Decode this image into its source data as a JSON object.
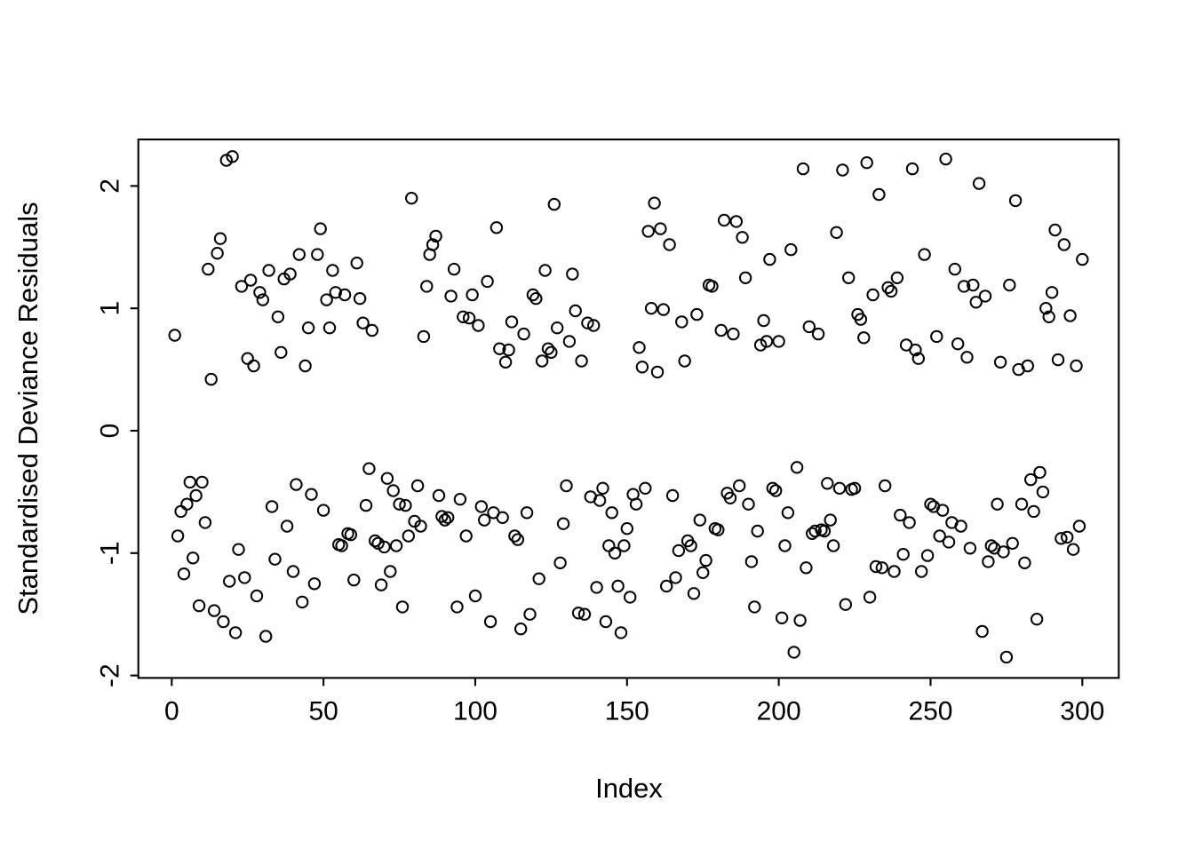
{
  "figure": {
    "background_color": "#ffffff",
    "stroke_color": "#000000"
  },
  "chart_data": {
    "type": "scatter",
    "title": "",
    "xlabel": "Index",
    "ylabel": "Standardised Deviance Residuals",
    "marker": "open-circle",
    "legend": "none",
    "grid": false,
    "xlim": [
      -11,
      312
    ],
    "ylim": [
      -2.02,
      2.38
    ],
    "x_ticks": [
      0,
      50,
      100,
      150,
      200,
      250,
      300
    ],
    "y_ticks": [
      -2,
      -1,
      0,
      1,
      2
    ],
    "points": [
      [
        1,
        0.78
      ],
      [
        2,
        -0.86
      ],
      [
        3,
        -0.66
      ],
      [
        4,
        -1.17
      ],
      [
        5,
        -0.6
      ],
      [
        6,
        -0.42
      ],
      [
        7,
        -1.04
      ],
      [
        8,
        -0.53
      ],
      [
        9,
        -1.43
      ],
      [
        10,
        -0.42
      ],
      [
        11,
        -0.75
      ],
      [
        12,
        1.32
      ],
      [
        13,
        0.42
      ],
      [
        14,
        -1.47
      ],
      [
        15,
        1.45
      ],
      [
        16,
        1.57
      ],
      [
        17,
        -1.56
      ],
      [
        18,
        2.21
      ],
      [
        19,
        -1.23
      ],
      [
        20,
        2.24
      ],
      [
        21,
        -1.65
      ],
      [
        22,
        -0.97
      ],
      [
        23,
        1.18
      ],
      [
        24,
        -1.2
      ],
      [
        25,
        0.59
      ],
      [
        26,
        1.23
      ],
      [
        27,
        0.53
      ],
      [
        28,
        -1.35
      ],
      [
        29,
        1.13
      ],
      [
        30,
        1.07
      ],
      [
        31,
        -1.68
      ],
      [
        32,
        1.31
      ],
      [
        33,
        -0.62
      ],
      [
        34,
        -1.05
      ],
      [
        35,
        0.93
      ],
      [
        36,
        0.64
      ],
      [
        37,
        1.24
      ],
      [
        38,
        -0.78
      ],
      [
        39,
        1.28
      ],
      [
        40,
        -1.15
      ],
      [
        41,
        -0.44
      ],
      [
        42,
        1.44
      ],
      [
        43,
        -1.4
      ],
      [
        44,
        0.53
      ],
      [
        45,
        0.84
      ],
      [
        46,
        -0.52
      ],
      [
        47,
        -1.25
      ],
      [
        48,
        1.44
      ],
      [
        49,
        1.65
      ],
      [
        50,
        -0.65
      ],
      [
        51,
        1.07
      ],
      [
        52,
        0.84
      ],
      [
        53,
        1.31
      ],
      [
        54,
        1.13
      ],
      [
        55,
        -0.93
      ],
      [
        56,
        -0.94
      ],
      [
        57,
        1.11
      ],
      [
        58,
        -0.84
      ],
      [
        59,
        -0.85
      ],
      [
        60,
        -1.22
      ],
      [
        61,
        1.37
      ],
      [
        62,
        1.08
      ],
      [
        63,
        0.88
      ],
      [
        64,
        -0.61
      ],
      [
        65,
        -0.31
      ],
      [
        66,
        0.82
      ],
      [
        67,
        -0.9
      ],
      [
        68,
        -0.92
      ],
      [
        69,
        -1.26
      ],
      [
        70,
        -0.95
      ],
      [
        71,
        -0.39
      ],
      [
        72,
        -1.15
      ],
      [
        73,
        -0.49
      ],
      [
        74,
        -0.94
      ],
      [
        75,
        -0.6
      ],
      [
        76,
        -1.44
      ],
      [
        77,
        -0.61
      ],
      [
        78,
        -0.86
      ],
      [
        79,
        1.9
      ],
      [
        80,
        -0.74
      ],
      [
        81,
        -0.45
      ],
      [
        82,
        -0.78
      ],
      [
        83,
        0.77
      ],
      [
        84,
        1.18
      ],
      [
        85,
        1.44
      ],
      [
        86,
        1.52
      ],
      [
        87,
        1.59
      ],
      [
        88,
        -0.53
      ],
      [
        89,
        -0.7
      ],
      [
        90,
        -0.73
      ],
      [
        91,
        -0.71
      ],
      [
        92,
        1.1
      ],
      [
        93,
        1.32
      ],
      [
        94,
        -1.44
      ],
      [
        95,
        -0.56
      ],
      [
        96,
        0.93
      ],
      [
        97,
        -0.86
      ],
      [
        98,
        0.92
      ],
      [
        99,
        1.11
      ],
      [
        100,
        -1.35
      ],
      [
        101,
        0.86
      ],
      [
        102,
        -0.62
      ],
      [
        103,
        -0.73
      ],
      [
        104,
        1.22
      ],
      [
        105,
        -1.56
      ],
      [
        106,
        -0.67
      ],
      [
        107,
        1.66
      ],
      [
        108,
        0.67
      ],
      [
        109,
        -0.71
      ],
      [
        110,
        0.56
      ],
      [
        111,
        0.66
      ],
      [
        112,
        0.89
      ],
      [
        113,
        -0.86
      ],
      [
        114,
        -0.89
      ],
      [
        115,
        -1.62
      ],
      [
        116,
        0.79
      ],
      [
        117,
        -0.67
      ],
      [
        118,
        -1.5
      ],
      [
        119,
        1.11
      ],
      [
        120,
        1.08
      ],
      [
        121,
        -1.21
      ],
      [
        122,
        0.57
      ],
      [
        123,
        1.31
      ],
      [
        124,
        0.67
      ],
      [
        125,
        0.64
      ],
      [
        126,
        1.85
      ],
      [
        127,
        0.84
      ],
      [
        128,
        -1.08
      ],
      [
        129,
        -0.76
      ],
      [
        130,
        -0.45
      ],
      [
        131,
        0.73
      ],
      [
        132,
        1.28
      ],
      [
        133,
        0.98
      ],
      [
        134,
        -1.49
      ],
      [
        135,
        0.57
      ],
      [
        136,
        -1.5
      ],
      [
        137,
        0.88
      ],
      [
        138,
        -0.54
      ],
      [
        139,
        0.86
      ],
      [
        140,
        -1.28
      ],
      [
        141,
        -0.57
      ],
      [
        142,
        -0.47
      ],
      [
        143,
        -1.56
      ],
      [
        144,
        -0.94
      ],
      [
        145,
        -0.67
      ],
      [
        146,
        -1.0
      ],
      [
        147,
        -1.27
      ],
      [
        148,
        -1.65
      ],
      [
        149,
        -0.94
      ],
      [
        150,
        -0.8
      ],
      [
        151,
        -1.36
      ],
      [
        152,
        -0.52
      ],
      [
        153,
        -0.6
      ],
      [
        154,
        0.68
      ],
      [
        155,
        0.52
      ],
      [
        156,
        -0.47
      ],
      [
        157,
        1.63
      ],
      [
        158,
        1.0
      ],
      [
        159,
        1.86
      ],
      [
        160,
        0.48
      ],
      [
        161,
        1.65
      ],
      [
        162,
        0.99
      ],
      [
        163,
        -1.27
      ],
      [
        164,
        1.52
      ],
      [
        165,
        -0.53
      ],
      [
        166,
        -1.2
      ],
      [
        167,
        -0.98
      ],
      [
        168,
        0.89
      ],
      [
        169,
        0.57
      ],
      [
        170,
        -0.9
      ],
      [
        171,
        -0.94
      ],
      [
        172,
        -1.33
      ],
      [
        173,
        0.95
      ],
      [
        174,
        -0.73
      ],
      [
        175,
        -1.16
      ],
      [
        176,
        -1.06
      ],
      [
        177,
        1.19
      ],
      [
        178,
        1.18
      ],
      [
        179,
        -0.8
      ],
      [
        180,
        -0.81
      ],
      [
        181,
        0.82
      ],
      [
        182,
        1.72
      ],
      [
        183,
        -0.51
      ],
      [
        184,
        -0.55
      ],
      [
        185,
        0.79
      ],
      [
        186,
        1.71
      ],
      [
        187,
        -0.45
      ],
      [
        188,
        1.58
      ],
      [
        189,
        1.25
      ],
      [
        190,
        -0.6
      ],
      [
        191,
        -1.07
      ],
      [
        192,
        -1.44
      ],
      [
        193,
        -0.82
      ],
      [
        194,
        0.7
      ],
      [
        195,
        0.9
      ],
      [
        196,
        0.73
      ],
      [
        197,
        1.4
      ],
      [
        198,
        -0.47
      ],
      [
        199,
        -0.49
      ],
      [
        200,
        0.73
      ],
      [
        201,
        -1.53
      ],
      [
        202,
        -0.94
      ],
      [
        203,
        -0.67
      ],
      [
        204,
        1.48
      ],
      [
        205,
        -1.81
      ],
      [
        206,
        -0.3
      ],
      [
        207,
        -1.55
      ],
      [
        208,
        2.14
      ],
      [
        209,
        -1.12
      ],
      [
        210,
        0.85
      ],
      [
        211,
        -0.84
      ],
      [
        212,
        -0.82
      ],
      [
        213,
        0.79
      ],
      [
        214,
        -0.81
      ],
      [
        215,
        -0.82
      ],
      [
        216,
        -0.43
      ],
      [
        217,
        -0.73
      ],
      [
        218,
        -0.94
      ],
      [
        219,
        1.62
      ],
      [
        220,
        -0.47
      ],
      [
        221,
        2.13
      ],
      [
        222,
        -1.42
      ],
      [
        223,
        1.25
      ],
      [
        224,
        -0.48
      ],
      [
        225,
        -0.47
      ],
      [
        226,
        0.95
      ],
      [
        227,
        0.91
      ],
      [
        228,
        0.76
      ],
      [
        229,
        2.19
      ],
      [
        230,
        -1.36
      ],
      [
        231,
        1.11
      ],
      [
        232,
        -1.11
      ],
      [
        233,
        1.93
      ],
      [
        234,
        -1.12
      ],
      [
        235,
        -0.45
      ],
      [
        236,
        1.17
      ],
      [
        237,
        1.14
      ],
      [
        238,
        -1.15
      ],
      [
        239,
        1.25
      ],
      [
        240,
        -0.69
      ],
      [
        241,
        -1.01
      ],
      [
        242,
        0.7
      ],
      [
        243,
        -0.75
      ],
      [
        244,
        2.14
      ],
      [
        245,
        0.66
      ],
      [
        246,
        0.59
      ],
      [
        247,
        -1.15
      ],
      [
        248,
        1.44
      ],
      [
        249,
        -1.02
      ],
      [
        250,
        -0.6
      ],
      [
        251,
        -0.62
      ],
      [
        252,
        0.77
      ],
      [
        253,
        -0.86
      ],
      [
        254,
        -0.65
      ],
      [
        255,
        2.22
      ],
      [
        256,
        -0.91
      ],
      [
        257,
        -0.75
      ],
      [
        258,
        1.32
      ],
      [
        259,
        0.71
      ],
      [
        260,
        -0.78
      ],
      [
        261,
        1.18
      ],
      [
        262,
        0.6
      ],
      [
        263,
        -0.96
      ],
      [
        264,
        1.19
      ],
      [
        265,
        1.05
      ],
      [
        266,
        2.02
      ],
      [
        267,
        -1.64
      ],
      [
        268,
        1.1
      ],
      [
        269,
        -1.07
      ],
      [
        270,
        -0.94
      ],
      [
        271,
        -0.96
      ],
      [
        272,
        -0.6
      ],
      [
        273,
        0.56
      ],
      [
        274,
        -0.99
      ],
      [
        275,
        -1.85
      ],
      [
        276,
        1.19
      ],
      [
        277,
        -0.92
      ],
      [
        278,
        1.88
      ],
      [
        279,
        0.5
      ],
      [
        280,
        -0.6
      ],
      [
        281,
        -1.08
      ],
      [
        282,
        0.53
      ],
      [
        283,
        -0.4
      ],
      [
        284,
        -0.66
      ],
      [
        285,
        -1.54
      ],
      [
        286,
        -0.34
      ],
      [
        287,
        -0.5
      ],
      [
        288,
        1.0
      ],
      [
        289,
        0.93
      ],
      [
        290,
        1.13
      ],
      [
        291,
        1.64
      ],
      [
        292,
        0.58
      ],
      [
        293,
        -0.88
      ],
      [
        294,
        1.52
      ],
      [
        295,
        -0.87
      ],
      [
        296,
        0.94
      ],
      [
        297,
        -0.97
      ],
      [
        298,
        0.53
      ],
      [
        299,
        -0.78
      ],
      [
        300,
        1.4
      ]
    ]
  }
}
